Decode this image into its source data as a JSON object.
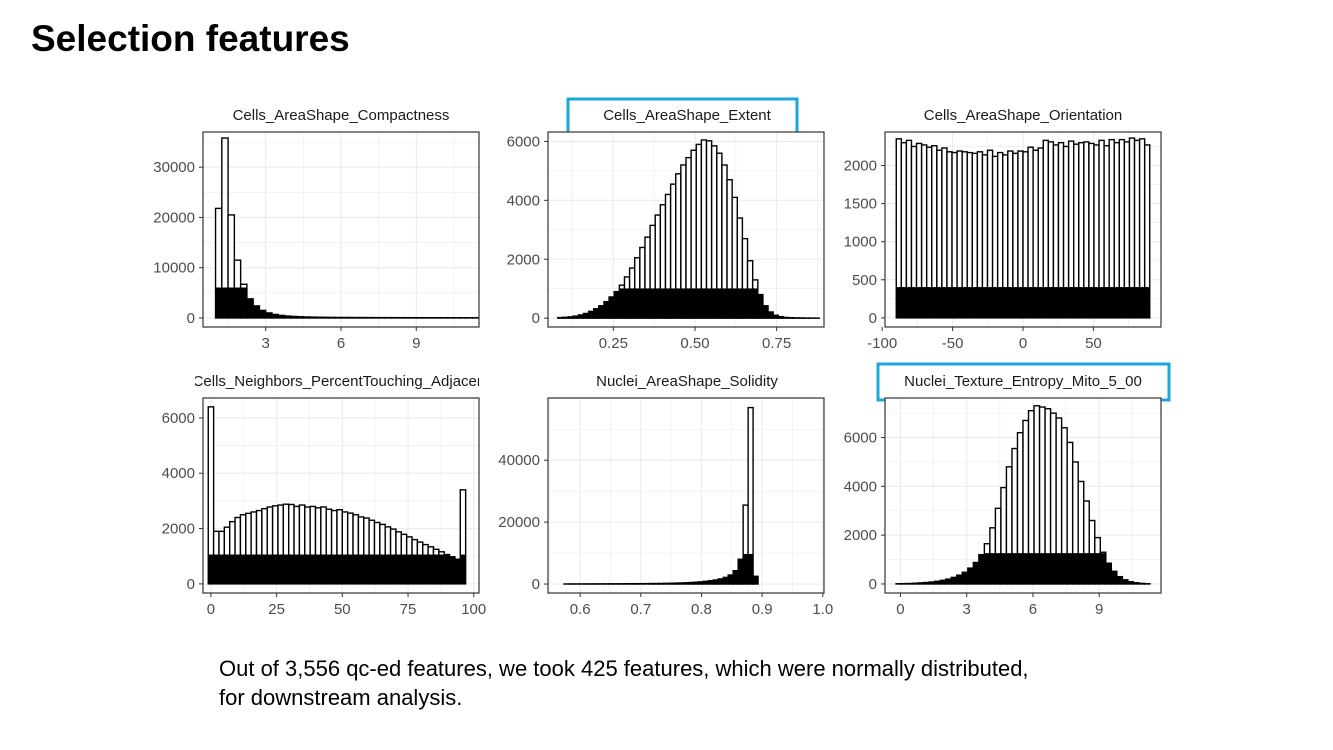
{
  "slide": {
    "title": "Selection features",
    "caption_line1": "Out of 3,556 qc-ed features, we took 425 features, which were normally distributed,",
    "caption_line2": "for downstream analysis."
  },
  "colors": {
    "highlight": "#1aa7dc",
    "grid": "#ebebeb",
    "axis_text": "#4d4d4d",
    "bar_fill": "#ffffff",
    "bar_stroke": "#000000",
    "inner_bar": "#000000"
  },
  "chart_data": [
    {
      "type": "bar",
      "title": "Cells_AreaShape_Compactness",
      "highlighted": false,
      "xlim": [
        0.5,
        11.5
      ],
      "ylim": [
        -1800,
        37000
      ],
      "xticks": [
        3,
        6,
        9
      ],
      "xtick_labels": [
        "3",
        "6",
        "9"
      ],
      "yticks": [
        0,
        10000,
        20000,
        30000
      ],
      "ytick_labels": [
        "0",
        "10000",
        "20000",
        "30000"
      ],
      "bin_start": 1.0,
      "bin_width": 0.25,
      "counts": [
        21800,
        35800,
        20500,
        11500,
        6700,
        3800,
        2400,
        1500,
        1000,
        700,
        500,
        380,
        300,
        240,
        200,
        170,
        150,
        130,
        110,
        100,
        95,
        90,
        85,
        80,
        75,
        70,
        68,
        65,
        62,
        60,
        58,
        55,
        52,
        50,
        48,
        46,
        44,
        42,
        40,
        38,
        36,
        34
      ],
      "inner_value": 6000
    },
    {
      "type": "bar",
      "title": "Cells_AreaShape_Extent",
      "highlighted": true,
      "xlim": [
        0.05,
        0.895
      ],
      "ylim": [
        -300,
        6320
      ],
      "xticks": [
        0.25,
        0.5,
        0.75
      ],
      "xtick_labels": [
        "0.25",
        "0.50",
        "0.75"
      ],
      "yticks": [
        0,
        2000,
        4000,
        6000
      ],
      "ytick_labels": [
        "0",
        "2000",
        "4000",
        "6000"
      ],
      "bin_start": 0.08,
      "bin_width": 0.0157,
      "counts": [
        20,
        30,
        45,
        70,
        110,
        160,
        230,
        320,
        420,
        560,
        720,
        900,
        1120,
        1400,
        1700,
        2050,
        2400,
        2750,
        3150,
        3500,
        3850,
        4200,
        4550,
        4900,
        5200,
        5450,
        5700,
        5900,
        6050,
        6020,
        5850,
        5600,
        5200,
        4700,
        4100,
        3400,
        2700,
        1950,
        1300,
        800,
        420,
        210,
        100,
        50,
        25,
        15,
        10,
        8,
        5,
        3,
        2
      ],
      "inner_value": 1000
    },
    {
      "type": "bar",
      "title": "Cells_AreaShape_Orientation",
      "highlighted": false,
      "xlim": [
        -98,
        98
      ],
      "ylim": [
        -120,
        2440
      ],
      "xticks": [
        -100,
        -50,
        0,
        50
      ],
      "xtick_labels": [
        "-100",
        "-50",
        "0",
        "50"
      ],
      "yticks": [
        0,
        500,
        1000,
        1500,
        2000
      ],
      "ytick_labels": [
        "0",
        "500",
        "1000",
        "1500",
        "2000"
      ],
      "bin_start": -90,
      "bin_width": 3.6,
      "counts": [
        2350,
        2300,
        2330,
        2250,
        2290,
        2270,
        2240,
        2260,
        2200,
        2230,
        2180,
        2170,
        2190,
        2180,
        2170,
        2160,
        2180,
        2140,
        2200,
        2120,
        2170,
        2140,
        2190,
        2160,
        2190,
        2180,
        2240,
        2200,
        2230,
        2330,
        2310,
        2270,
        2300,
        2250,
        2320,
        2280,
        2300,
        2310,
        2290,
        2270,
        2330,
        2260,
        2340,
        2300,
        2340,
        2310,
        2360,
        2330,
        2350,
        2270
      ],
      "inner_value": 400
    },
    {
      "type": "bar",
      "title": "Cells_Neighbors_PercentTouching_Adjacent",
      "highlighted": false,
      "xlim": [
        -3,
        102
      ],
      "ylim": [
        -330,
        6720
      ],
      "xticks": [
        0,
        25,
        50,
        75,
        100
      ],
      "xtick_labels": [
        "0",
        "25",
        "50",
        "75",
        "100"
      ],
      "yticks": [
        0,
        2000,
        4000,
        6000
      ],
      "ytick_labels": [
        "0",
        "2000",
        "4000",
        "6000"
      ],
      "bin_start": -1,
      "bin_width": 2.04,
      "counts": [
        6400,
        1900,
        1900,
        2050,
        2250,
        2400,
        2500,
        2550,
        2600,
        2650,
        2720,
        2780,
        2820,
        2850,
        2880,
        2870,
        2800,
        2850,
        2780,
        2800,
        2750,
        2780,
        2700,
        2650,
        2680,
        2600,
        2560,
        2500,
        2420,
        2380,
        2300,
        2220,
        2150,
        2060,
        1980,
        1880,
        1790,
        1700,
        1600,
        1510,
        1420,
        1340,
        1250,
        1160,
        1060,
        980,
        890,
        3400
      ],
      "inner_value": 1050
    },
    {
      "type": "bar",
      "title": "Nuclei_AreaShape_Solidity",
      "highlighted": false,
      "xlim": [
        0.547,
        1.002
      ],
      "ylim": [
        -2900,
        60100
      ],
      "xticks": [
        0.6,
        0.7,
        0.8,
        0.9,
        1.0
      ],
      "xtick_labels": [
        "0.6",
        "0.7",
        "0.8",
        "0.9",
        "1.0"
      ],
      "yticks": [
        0,
        20000,
        40000
      ],
      "ytick_labels": [
        "0",
        "20000",
        "40000"
      ],
      "bin_start": 0.5735,
      "bin_width": 0.0082,
      "counts": [
        20,
        25,
        30,
        35,
        40,
        45,
        50,
        55,
        60,
        65,
        70,
        80,
        90,
        100,
        110,
        120,
        130,
        150,
        170,
        190,
        220,
        250,
        290,
        340,
        400,
        480,
        580,
        700,
        860,
        1060,
        1300,
        1650,
        2150,
        2900,
        4300,
        8000,
        25500,
        57000,
        2500
      ],
      "inner_value": 9600
    },
    {
      "type": "bar",
      "title": "Nuclei_Texture_Entropy_Mito_5_00",
      "highlighted": true,
      "xlim": [
        -0.7,
        11.8
      ],
      "ylim": [
        -370,
        7620
      ],
      "xticks": [
        0,
        3,
        6,
        9
      ],
      "xtick_labels": [
        "0",
        "3",
        "6",
        "9"
      ],
      "yticks": [
        0,
        2000,
        4000,
        6000
      ],
      "ytick_labels": [
        "0",
        "2000",
        "4000",
        "6000"
      ],
      "bin_start": -0.2,
      "bin_width": 0.25,
      "counts": [
        10,
        15,
        20,
        30,
        45,
        60,
        80,
        110,
        150,
        200,
        270,
        360,
        480,
        650,
        880,
        1200,
        1650,
        2300,
        3100,
        3950,
        4800,
        5550,
        6200,
        6700,
        7100,
        7300,
        7250,
        7180,
        7000,
        6800,
        6400,
        5800,
        5000,
        4200,
        3400,
        2600,
        1900,
        1300,
        850,
        520,
        300,
        170,
        90,
        50,
        25,
        12
      ],
      "inner_value": 1250
    }
  ]
}
